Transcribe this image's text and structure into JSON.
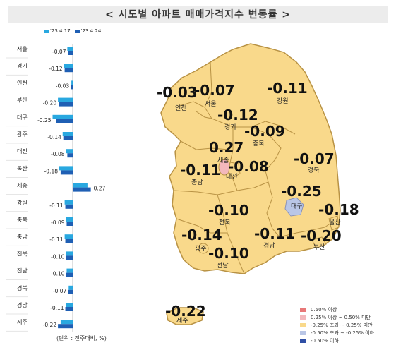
{
  "title": "< 시도별  아파트  매매가격지수  변동률 >",
  "colors": {
    "series_prev": "#29a8e0",
    "series_curr": "#1f5fb4",
    "map_fill": "#f9d98b",
    "map_border": "#b89244",
    "range_1": "#e87878",
    "range_2": "#f3b8bc",
    "range_3": "#f9d98b",
    "range_4": "#b9c6e6",
    "range_5": "#2f4fa5"
  },
  "chart_data": [
    {
      "type": "bar",
      "orientation": "horizontal",
      "categories": [
        "서울",
        "경기",
        "인천",
        "부산",
        "대구",
        "광주",
        "대전",
        "울산",
        "세종",
        "강원",
        "충북",
        "충남",
        "전북",
        "전남",
        "경북",
        "경남",
        "제주"
      ],
      "series": [
        {
          "name": "'23.4.17",
          "values": [
            -0.08,
            -0.13,
            -0.02,
            -0.22,
            -0.3,
            -0.15,
            -0.1,
            -0.2,
            0.22,
            -0.12,
            -0.1,
            -0.12,
            -0.1,
            -0.09,
            -0.06,
            -0.1,
            -0.18
          ]
        },
        {
          "name": "'23.4.24",
          "values": [
            -0.07,
            -0.12,
            -0.03,
            -0.2,
            -0.25,
            -0.14,
            -0.08,
            -0.18,
            0.27,
            -0.11,
            -0.09,
            -0.11,
            -0.1,
            -0.1,
            -0.07,
            -0.11,
            -0.22
          ]
        }
      ],
      "value_labels": [
        "-0.07",
        "-0.12",
        "-0.03",
        "-0.20",
        "-0.25",
        "-0.14",
        "-0.08",
        "-0.18",
        "0.27",
        "-0.11",
        "-0.09",
        "-0.11",
        "-0.10",
        "-0.10",
        "-0.07",
        "-0.11",
        "-0.22"
      ],
      "unit_note": "(단위 : 전주대비, %)"
    },
    {
      "type": "map",
      "regions": [
        {
          "name": "서울",
          "value": "-0.07",
          "range": 3
        },
        {
          "name": "인천",
          "value": "-0.03",
          "range": 3
        },
        {
          "name": "경기",
          "value": "-0.12",
          "range": 3
        },
        {
          "name": "강원",
          "value": "-0.11",
          "range": 3
        },
        {
          "name": "충북",
          "value": "-0.09",
          "range": 3
        },
        {
          "name": "세종",
          "value": "0.27",
          "range": 2
        },
        {
          "name": "대전",
          "value": "-0.08",
          "range": 3
        },
        {
          "name": "충남",
          "value": "-0.11",
          "range": 3
        },
        {
          "name": "경북",
          "value": "-0.07",
          "range": 3
        },
        {
          "name": "대구",
          "value": "-0.25",
          "range": 4
        },
        {
          "name": "울산",
          "value": "-0.18",
          "range": 3
        },
        {
          "name": "전북",
          "value": "-0.10",
          "range": 3
        },
        {
          "name": "광주",
          "value": "-0.14",
          "range": 3
        },
        {
          "name": "전남",
          "value": "-0.10",
          "range": 3
        },
        {
          "name": "경남",
          "value": "-0.11",
          "range": 3
        },
        {
          "name": "부산",
          "value": "-0.20",
          "range": 3
        },
        {
          "name": "제주",
          "value": "-0.22",
          "range": 3
        }
      ],
      "legend": [
        "0.50% 이상",
        "0.25% 이상 ~ 0.50% 미만",
        "-0.25% 초과 ~ 0.25% 미만",
        "-0.50% 초과 ~ -0.25% 이하",
        "-0.50% 이하"
      ]
    }
  ]
}
